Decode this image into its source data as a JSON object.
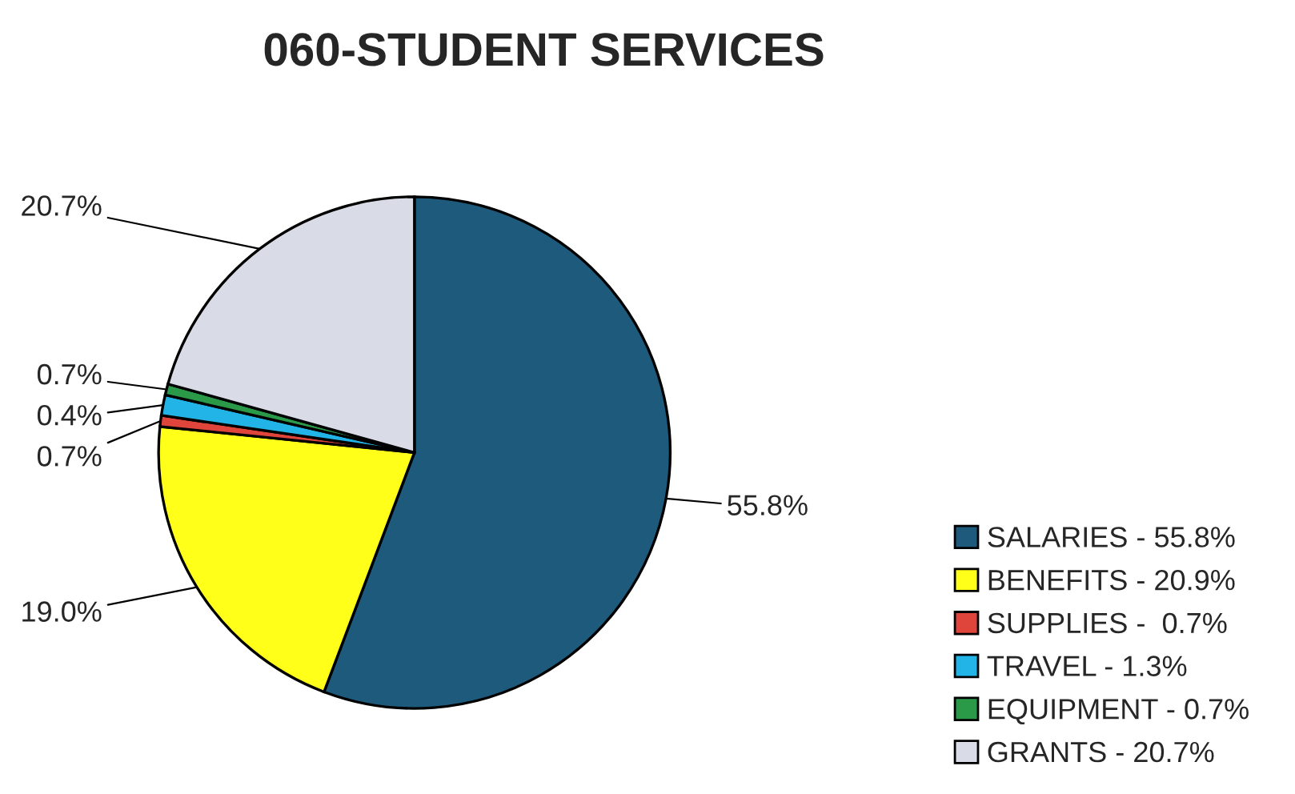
{
  "chart_data": {
    "type": "pie",
    "title": "060-STUDENT SERVICES",
    "categories": [
      "SALARIES - 55.8%",
      "BENEFITS - 20.9%",
      "SUPPLIES -  0.7%",
      "TRAVEL - 1.3%",
      "EQUIPMENT - 0.7%",
      "GRANTS - 20.7%"
    ],
    "values": [
      55.8,
      20.9,
      0.7,
      1.3,
      0.7,
      20.7
    ],
    "annotations": [
      "55.8%",
      "19.0%",
      "0.7%",
      "0.4%",
      "0.7%",
      "20.7%"
    ],
    "colors": [
      "#1d5a7c",
      "#ffff1a",
      "#e0453c",
      "#22b4e6",
      "#2a9a48",
      "#d9dce6"
    ],
    "legend": "bottom right"
  }
}
